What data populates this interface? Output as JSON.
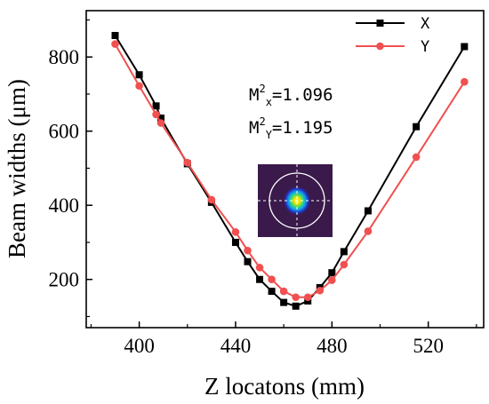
{
  "chart_data": {
    "type": "line",
    "title": "",
    "xlabel": "Z locatons (mm)",
    "ylabel": "Beam widths (μm)",
    "xlim": [
      378,
      543
    ],
    "ylim": [
      70,
      925
    ],
    "xticks": [
      "400",
      "440",
      "480",
      "520"
    ],
    "xtick_values": [
      400,
      440,
      480,
      520
    ],
    "yticks": [
      "200",
      "400",
      "600",
      "800"
    ],
    "ytick_values": [
      200,
      400,
      600,
      800
    ],
    "grid": false,
    "legend_position": "top-right",
    "series": [
      {
        "name": "X",
        "color": "#000000",
        "marker": "square",
        "x": [
          390,
          400,
          407,
          409,
          420,
          430,
          440,
          445,
          450,
          455,
          460,
          465,
          470,
          475,
          480,
          485,
          495,
          515,
          535
        ],
        "y": [
          858,
          752,
          668,
          635,
          512,
          408,
          300,
          248,
          200,
          168,
          138,
          128,
          142,
          178,
          218,
          275,
          385,
          612,
          828
        ]
      },
      {
        "name": "Y",
        "color": "#f05050",
        "marker": "circle",
        "x": [
          390,
          400,
          407,
          409,
          420,
          430,
          440,
          445,
          450,
          455,
          460,
          465,
          470,
          475,
          480,
          485,
          495,
          515,
          535
        ],
        "y": [
          835,
          722,
          645,
          622,
          515,
          415,
          328,
          278,
          232,
          200,
          168,
          152,
          152,
          170,
          198,
          240,
          330,
          530,
          733
        ]
      }
    ],
    "annotations": {
      "mx_base": "M",
      "mx_sup": "2",
      "mx_sub": "x",
      "mx_value": "=1.096",
      "my_base": "M",
      "my_sup": "2",
      "my_sub": "Y",
      "my_value": "=1.195"
    },
    "inset": {
      "description_icon": "beam-profile-image",
      "background_color": "#3a1a4a"
    }
  }
}
